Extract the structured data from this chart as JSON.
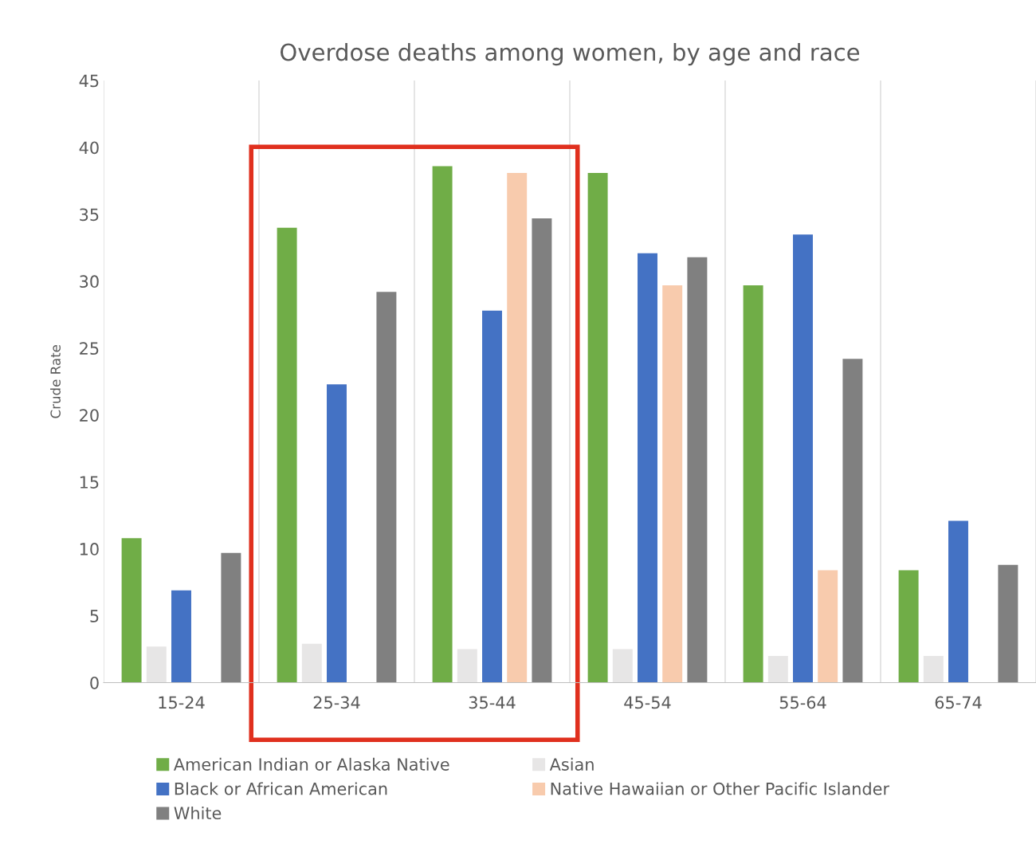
{
  "chart_data": {
    "type": "bar",
    "title": "Overdose deaths among women, by age and race",
    "ylabel": "Crude Rate",
    "categories": [
      "15-24",
      "25-34",
      "35-44",
      "45-54",
      "55-64",
      "65-74"
    ],
    "series": [
      {
        "name": "American Indian or Alaska Native",
        "color": "#70ad47",
        "values": [
          10.8,
          34.0,
          38.6,
          38.1,
          29.7,
          8.4
        ]
      },
      {
        "name": "Asian",
        "color": "#e7e6e6",
        "values": [
          2.7,
          2.9,
          2.5,
          2.5,
          2.0,
          2.0
        ]
      },
      {
        "name": "Black or African American",
        "color": "#4472c4",
        "values": [
          6.9,
          22.3,
          27.8,
          32.1,
          33.5,
          12.1
        ]
      },
      {
        "name": "Native Hawaiian or Other Pacific Islander",
        "color": "#f8cbad",
        "values": [
          null,
          null,
          38.1,
          29.7,
          8.4,
          null
        ]
      },
      {
        "name": "White",
        "color": "#808080",
        "values": [
          9.7,
          29.2,
          34.7,
          31.8,
          24.2,
          8.8
        ]
      }
    ],
    "ylim": [
      0,
      45
    ],
    "yticks": [
      0,
      5,
      10,
      15,
      20,
      25,
      30,
      35,
      40,
      45
    ],
    "grid": "x",
    "legend": "bottom"
  }
}
